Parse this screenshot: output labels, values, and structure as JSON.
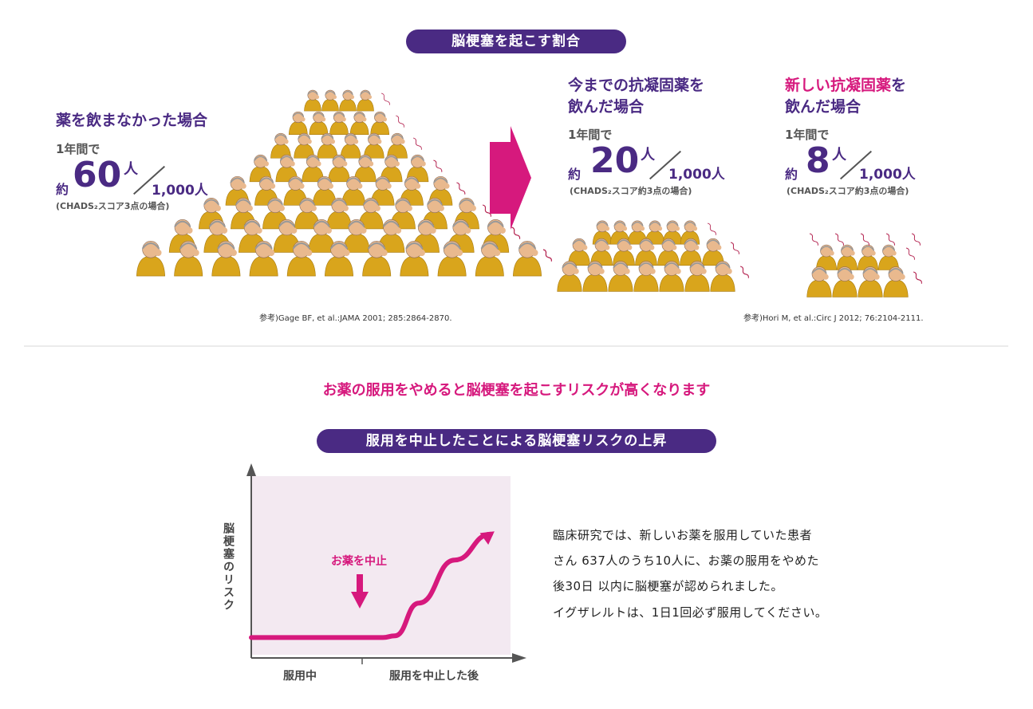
{
  "title_pill": "脳梗塞を起こす割合",
  "no_drug": {
    "heading": "薬を飲まなかった場合",
    "period": "1年間で",
    "approx": "約",
    "count": "60",
    "person": "人",
    "denominator": "1,000人",
    "note": "(CHADS₂スコア3点の場合)"
  },
  "old_drug": {
    "heading_line1": "今までの抗凝固薬を",
    "heading_line2": "飲んだ場合",
    "period": "1年間で",
    "approx": "約",
    "count": "20",
    "person": "人",
    "denominator": "1,000人",
    "note": "(CHADS₂スコア約3点の場合)"
  },
  "new_drug": {
    "heading_accent": "新しい抗凝固薬",
    "heading_rest": "を",
    "heading_line2": "飲んだ場合",
    "period": "1年間で",
    "approx": "約",
    "count": "8",
    "person": "人",
    "denominator": "1,000人",
    "note": "(CHADS₂スコア約3点の場合)"
  },
  "references": {
    "left": "参考)Gage BF, et al.:JAMA 2001; 285:2864-2870.",
    "right": "参考)Hori M, et al.:Circ J 2012; 76:2104-2111."
  },
  "risk_headline": "お薬の服用をやめると脳梗塞を起こすリスクが高くなります",
  "chart_pill": "服用を中止したことによる脳梗塞リスクの上昇",
  "chart_data": {
    "type": "line",
    "title": "服用を中止したことによる脳梗塞リスクの上昇",
    "ylabel": "脳梗塞のリスク",
    "xlabel": "",
    "categories": [
      "服用中",
      "服用を中止した後"
    ],
    "annotation": "お薬を中止",
    "series": [
      {
        "name": "脳梗塞のリスク",
        "x": [
          0,
          0.2,
          0.4,
          0.55,
          0.6,
          0.7,
          0.85,
          1.0
        ],
        "values": [
          0.1,
          0.1,
          0.1,
          0.1,
          0.11,
          0.3,
          0.55,
          0.7
        ]
      }
    ],
    "xlim": [
      0,
      1
    ],
    "ylim": [
      0,
      1
    ],
    "stop_x": 0.43
  },
  "description": [
    "臨床研究では、新しいお薬を服用していた患者",
    "さん 637人のうち10人に、お薬の服用をやめた",
    "後30日 以内に脳梗塞が認められました。",
    "イグザレルトは、1日1回必ず服用してください。"
  ],
  "colors": {
    "purple": "#4a2a83",
    "magenta": "#d6197d",
    "chart_bg": "#f3e9f1",
    "figure_yellow": "#d9a51c"
  }
}
